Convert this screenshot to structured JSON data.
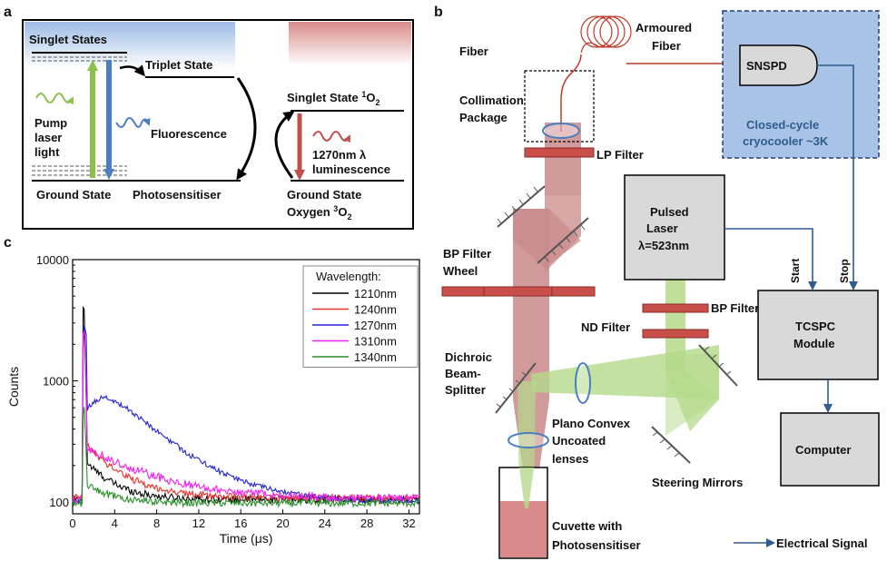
{
  "panel_a": {
    "letter": "a",
    "singlet_states": "Singlet States",
    "triplet_state": "Triplet State",
    "pump_line1": "Pump",
    "pump_line2": "laser",
    "pump_line3": "light",
    "fluorescence": "Fluorescence",
    "ground_state": "Ground State",
    "photosensitiser": "Photosensitiser",
    "singlet_o2_main": "Singlet State ",
    "singlet_o2_sup": "1",
    "singlet_o2_end": "O",
    "singlet_o2_sub": "2",
    "lum_line1": "1270nm λ",
    "lum_line2": "luminescence",
    "ground_o2_line1": "Ground State",
    "ground_o2_line2_main": "Oxygen ",
    "ground_o2_sup": "3",
    "ground_o2_end": "O",
    "ground_o2_sub": "2"
  },
  "panel_b": {
    "letter": "b",
    "armoured_line1": "Armoured",
    "armoured_line2": "Fiber",
    "snspd": "SNSPD",
    "cryo_line1": "Closed-cycle",
    "cryo_line2": "cryocooler ~3K",
    "fcp_line1": "Fiber",
    "fcp_line2": "Collimation",
    "fcp_line3": "Package",
    "lp_filter": "LP Filter",
    "bp_wheel_line1": "BP Filter",
    "bp_wheel_line2": "Wheel",
    "laser_line1": "Pulsed",
    "laser_line2": "Laser",
    "laser_line3": "λ=523nm",
    "start": "Start",
    "stop": "Stop",
    "bp_filter": "BP Filter",
    "nd_filter": "ND Filter",
    "tcspc_line1": "TCSPC",
    "tcspc_line2": "Module",
    "dichroic_line1": "Dichroic",
    "dichroic_line2": "Beam-",
    "dichroic_line3": "Splitter",
    "plano_line1": "Plano Convex",
    "plano_line2": "Uncoated",
    "plano_line3": "lenses",
    "steering": "Steering Mirrors",
    "computer": "Computer",
    "cuvette_line1": "Cuvette with",
    "cuvette_line2": "Photosensitiser",
    "electrical": "Electrical Signal"
  },
  "colors": {
    "red_beam": "#c98a8a",
    "green_beam": "#b4d98a",
    "filter_red": "#c9504a",
    "cryo_blue": "#a9c3e6",
    "signal_blue": "#2e5c8e",
    "box_gray": "#d9d9d9",
    "fiber_red": "#c0392b"
  },
  "chart_data": {
    "type": "line",
    "panel_letter": "c",
    "xlabel": "Time (μs)",
    "ylabel": "Counts",
    "xlim": [
      0,
      33
    ],
    "ylim": [
      80,
      10000
    ],
    "yscale": "log",
    "xticks": [
      0,
      4,
      8,
      12,
      16,
      20,
      24,
      28,
      32
    ],
    "yticks": [
      100,
      1000,
      10000
    ],
    "legend_title": "Wavelength:",
    "legend_position": "top-right",
    "series": [
      {
        "name": "1210nm",
        "color": "#000000",
        "peak": 6000,
        "tail_amp": 120,
        "tail_tau": 2.5,
        "base": 105,
        "rise": 0,
        "noise": 0.07
      },
      {
        "name": "1240nm",
        "color": "#e8302a",
        "peak": 3500,
        "tail_amp": 200,
        "tail_tau": 3.2,
        "base": 108,
        "rise": 0,
        "noise": 0.07
      },
      {
        "name": "1270nm",
        "color": "#2323d6",
        "peak": 3000,
        "tail_amp": 1320,
        "tail_tau": 4.6,
        "base": 100,
        "rise": 1.3,
        "noise": 0.05
      },
      {
        "name": "1310nm",
        "color": "#ee22ee",
        "peak": 3600,
        "tail_amp": 180,
        "tail_tau": 6.0,
        "base": 106,
        "rise": 0,
        "noise": 0.08
      },
      {
        "name": "1340nm",
        "color": "#2a8f2a",
        "peak": 750,
        "tail_amp": 45,
        "tail_tau": 2.5,
        "base": 98,
        "rise": 0,
        "noise": 0.07
      }
    ]
  }
}
